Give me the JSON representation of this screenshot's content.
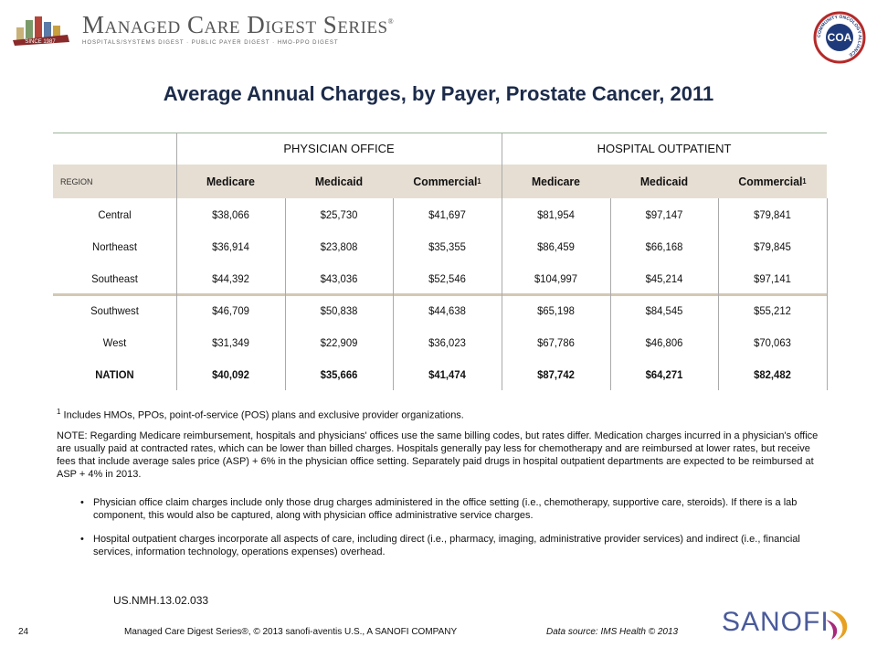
{
  "header": {
    "logo_title": "Managed Care Digest Series",
    "logo_mark": "®",
    "logo_subtitle": "HOSPITALS/SYSTEMS DIGEST · PUBLIC PAYER DIGEST · HMO-PPO DIGEST",
    "logo_badge": "SINCE 1987",
    "seal_text": "COMMUNITY ONCOLOGY ALLIANCE",
    "seal_initials": "COA"
  },
  "title": "Average Annual Charges, by Payer, Prostate Cancer, 2011",
  "table": {
    "groups": [
      "PHYSICIAN OFFICE",
      "HOSPITAL OUTPATIENT"
    ],
    "region_label": "REGION",
    "columns": [
      {
        "label": "Medicare"
      },
      {
        "label": "Medicaid"
      },
      {
        "label": "Commercial",
        "sup": "1"
      },
      {
        "label": "Medicare"
      },
      {
        "label": "Medicaid"
      },
      {
        "label": "Commercial",
        "sup": "1"
      }
    ],
    "rows": [
      {
        "region": "Central",
        "values": [
          "$38,066",
          "$25,730",
          "$41,697",
          "$81,954",
          "$97,147",
          "$79,841"
        ]
      },
      {
        "region": "Northeast",
        "values": [
          "$36,914",
          "$23,808",
          "$35,355",
          "$86,459",
          "$66,168",
          "$79,845"
        ]
      },
      {
        "region": "Southeast",
        "values": [
          "$44,392",
          "$43,036",
          "$52,546",
          "$104,997",
          "$45,214",
          "$97,141"
        ]
      },
      {
        "region": "Southwest",
        "values": [
          "$46,709",
          "$50,838",
          "$44,638",
          "$65,198",
          "$84,545",
          "$55,212"
        ]
      },
      {
        "region": "West",
        "values": [
          "$31,349",
          "$22,909",
          "$36,023",
          "$67,786",
          "$46,806",
          "$70,063"
        ]
      },
      {
        "region": "NATION",
        "values": [
          "$40,092",
          "$35,666",
          "$41,474",
          "$87,742",
          "$64,271",
          "$82,482"
        ]
      }
    ]
  },
  "footnote": {
    "marker": "1",
    "text": "Includes HMOs, PPOs, point-of-service (POS) plans and exclusive provider organizations."
  },
  "note": "NOTE: Regarding Medicare reimbursement, hospitals and physicians' offices use the same billing codes, but rates differ. Medication charges incurred in a physician's office are usually paid at contracted rates, which can be lower than billed charges. Hospitals generally pay less for chemotherapy and are reimbursed at lower rates, but receive fees that include average sales price (ASP) + 6% in the physician office setting. Separately paid drugs in hospital outpatient departments are expected to be reimbursed at ASP + 4% in 2013.",
  "bullets": [
    "Physician office claim charges include only those drug charges administered in the office setting (i.e., chemotherapy, supportive care, steroids). If there is a lab component, this would also be captured, along with physician office administrative service charges.",
    "Hospital outpatient charges incorporate all aspects of care, including direct (i.e., pharmacy, imaging, administrative provider services) and indirect (i.e., financial services, information technology, operations expenses) overhead."
  ],
  "code": "US.NMH.13.02.033",
  "footer": {
    "page": "24",
    "copyright": "Managed Care Digest Series®, © 2013 sanofi-aventis U.S., A SANOFI COMPANY",
    "source": "Data source: IMS Health © 2013",
    "brand": "SANOFI"
  }
}
